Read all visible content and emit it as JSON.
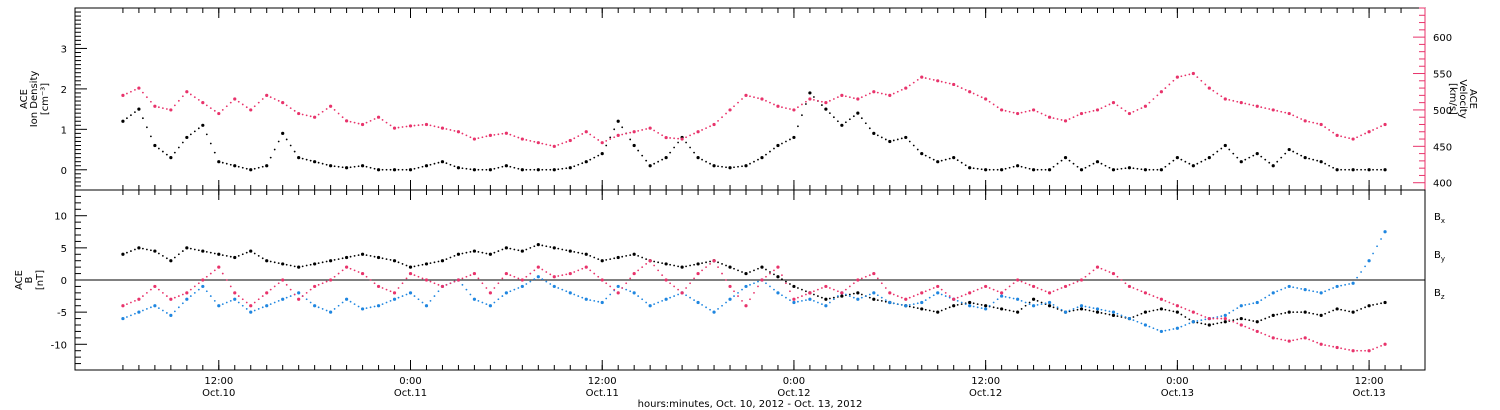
{
  "chart_data": [
    {
      "type": "scatter",
      "panel": "top",
      "ylabel_left": [
        "ACE",
        "Ion Density",
        "[cm⁻³]"
      ],
      "ylabel_right": [
        "ACE",
        "Velocity",
        "[km/s]"
      ],
      "ylim_left": [
        -0.5,
        4.0
      ],
      "ylim_right": [
        390,
        640
      ],
      "yticks_left": [
        0,
        1,
        2,
        3
      ],
      "yticks_right": [
        400,
        450,
        500,
        550,
        600
      ],
      "series": [
        {
          "key": "density",
          "axis": "left",
          "color": "#000000",
          "x": [
            0,
            2,
            4,
            6,
            8,
            10,
            12,
            14,
            16,
            18,
            20,
            22,
            24,
            26,
            28,
            30,
            32,
            34,
            36,
            38,
            40,
            42,
            44,
            46,
            48,
            50,
            52,
            54,
            56,
            58,
            60,
            62,
            64,
            66,
            68,
            70,
            72,
            74,
            76,
            78,
            80,
            82,
            84,
            86,
            88,
            90,
            92,
            94,
            96,
            98,
            100,
            102,
            104,
            106,
            108,
            110,
            112,
            114,
            116,
            118,
            120,
            122,
            124,
            126,
            128,
            130,
            132,
            134,
            136,
            138,
            140,
            142,
            144,
            146,
            148,
            150,
            152,
            154,
            156,
            158
          ],
          "y": [
            1.2,
            1.5,
            0.6,
            0.3,
            0.8,
            1.1,
            0.2,
            0.1,
            0.0,
            0.1,
            0.9,
            0.3,
            0.2,
            0.1,
            0.05,
            0.1,
            0.0,
            0.0,
            0.0,
            0.1,
            0.2,
            0.05,
            0.0,
            0.0,
            0.1,
            0.0,
            0.0,
            0.0,
            0.05,
            0.2,
            0.4,
            1.2,
            0.6,
            0.1,
            0.3,
            0.8,
            0.3,
            0.1,
            0.05,
            0.1,
            0.3,
            0.6,
            0.8,
            1.9,
            1.5,
            1.1,
            1.4,
            0.9,
            0.7,
            0.8,
            0.4,
            0.2,
            0.3,
            0.05,
            0.0,
            0.0,
            0.1,
            0.0,
            0.0,
            0.3,
            0.0,
            0.2,
            0.0,
            0.05,
            0.0,
            0.0,
            0.3,
            0.1,
            0.3,
            0.6,
            0.2,
            0.4,
            0.1,
            0.5,
            0.3,
            0.2,
            0.0,
            0.0,
            0.0,
            0.0
          ]
        },
        {
          "key": "velocity",
          "axis": "right",
          "color": "#e8336b",
          "x": [
            0,
            2,
            4,
            6,
            8,
            10,
            12,
            14,
            16,
            18,
            20,
            22,
            24,
            26,
            28,
            30,
            32,
            34,
            36,
            38,
            40,
            42,
            44,
            46,
            48,
            50,
            52,
            54,
            56,
            58,
            60,
            62,
            64,
            66,
            68,
            70,
            72,
            74,
            76,
            78,
            80,
            82,
            84,
            86,
            88,
            90,
            92,
            94,
            96,
            98,
            100,
            102,
            104,
            106,
            108,
            110,
            112,
            114,
            116,
            118,
            120,
            122,
            124,
            126,
            128,
            130,
            132,
            134,
            136,
            138,
            140,
            142,
            144,
            146,
            148,
            150,
            152,
            154,
            156,
            158
          ],
          "y": [
            520,
            530,
            505,
            500,
            525,
            510,
            495,
            515,
            500,
            520,
            510,
            495,
            490,
            505,
            485,
            480,
            490,
            475,
            478,
            480,
            475,
            470,
            460,
            465,
            468,
            460,
            455,
            450,
            458,
            470,
            455,
            465,
            470,
            475,
            462,
            460,
            470,
            480,
            500,
            520,
            515,
            505,
            500,
            515,
            510,
            520,
            515,
            525,
            520,
            530,
            545,
            540,
            535,
            525,
            515,
            500,
            495,
            500,
            490,
            485,
            495,
            500,
            510,
            495,
            505,
            525,
            545,
            550,
            530,
            515,
            510,
            505,
            500,
            495,
            485,
            480,
            465,
            460,
            470,
            480
          ]
        }
      ]
    },
    {
      "type": "scatter",
      "panel": "bottom",
      "ylabel_left": [
        "ACE",
        "B",
        "[nT]"
      ],
      "ylim": [
        -14,
        14
      ],
      "yticks": [
        -10,
        -5,
        0,
        5,
        10
      ],
      "series": [
        {
          "key": "bx",
          "name": "Bx",
          "color": "#000000",
          "x": [
            0,
            2,
            4,
            6,
            8,
            10,
            12,
            14,
            16,
            18,
            20,
            22,
            24,
            26,
            28,
            30,
            32,
            34,
            36,
            38,
            40,
            42,
            44,
            46,
            48,
            50,
            52,
            54,
            56,
            58,
            60,
            62,
            64,
            66,
            68,
            70,
            72,
            74,
            76,
            78,
            80,
            82,
            84,
            86,
            88,
            90,
            92,
            94,
            96,
            98,
            100,
            102,
            104,
            106,
            108,
            110,
            112,
            114,
            116,
            118,
            120,
            122,
            124,
            126,
            128,
            130,
            132,
            134,
            136,
            138,
            140,
            142,
            144,
            146,
            148,
            150,
            152,
            154,
            156,
            158
          ],
          "y": [
            4,
            5,
            4.5,
            3,
            5,
            4.5,
            4,
            3.5,
            4.5,
            3,
            2.5,
            2,
            2.5,
            3,
            3.5,
            4,
            3.5,
            3,
            2,
            2.5,
            3,
            4,
            4.5,
            4,
            5,
            4.5,
            5.5,
            5,
            4.5,
            4,
            3,
            3.5,
            4,
            3,
            2.5,
            2,
            2.5,
            3,
            2,
            1,
            2,
            0.5,
            -1,
            -2,
            -3,
            -2.5,
            -2,
            -3,
            -3.5,
            -4,
            -4.5,
            -5,
            -4,
            -3.5,
            -4,
            -4.5,
            -5,
            -3,
            -4,
            -5,
            -4.5,
            -5,
            -5.5,
            -6,
            -5,
            -4.5,
            -5,
            -6.5,
            -7,
            -6.5,
            -6,
            -6.5,
            -5.5,
            -5,
            -5,
            -5.5,
            -4.5,
            -5,
            -4,
            -3.5
          ]
        },
        {
          "key": "by",
          "name": "By",
          "color": "#1f86e0",
          "x": [
            0,
            2,
            4,
            6,
            8,
            10,
            12,
            14,
            16,
            18,
            20,
            22,
            24,
            26,
            28,
            30,
            32,
            34,
            36,
            38,
            40,
            42,
            44,
            46,
            48,
            50,
            52,
            54,
            56,
            58,
            60,
            62,
            64,
            66,
            68,
            70,
            72,
            74,
            76,
            78,
            80,
            82,
            84,
            86,
            88,
            90,
            92,
            94,
            96,
            98,
            100,
            102,
            104,
            106,
            108,
            110,
            112,
            114,
            116,
            118,
            120,
            122,
            124,
            126,
            128,
            130,
            132,
            134,
            136,
            138,
            140,
            142,
            144,
            146,
            148,
            150,
            152,
            154,
            156,
            158
          ],
          "y": [
            -6,
            -5,
            -4,
            -5.5,
            -3,
            -1,
            -4,
            -3,
            -5,
            -4,
            -3,
            -2,
            -4,
            -5,
            -3,
            -4.5,
            -4,
            -3,
            -2,
            -4,
            -1,
            0,
            -3,
            -4,
            -2,
            -1,
            0.5,
            -1,
            -2,
            -3,
            -3.5,
            -1,
            -2,
            -4,
            -3,
            -2,
            -3.5,
            -5,
            -3,
            -1,
            0,
            -2,
            -3.5,
            -3,
            -4,
            -2,
            -3,
            -2,
            -3.5,
            -4,
            -3.5,
            -2,
            -3,
            -4,
            -4.5,
            -2.5,
            -3,
            -4,
            -3.5,
            -5,
            -4,
            -4.5,
            -5,
            -6,
            -7,
            -8,
            -7.5,
            -6.5,
            -6,
            -5.5,
            -4,
            -3.5,
            -2,
            -1,
            -1.5,
            -2,
            -1,
            -0.5,
            3,
            7.5
          ]
        },
        {
          "key": "bz",
          "name": "Bz",
          "color": "#e8336b",
          "x": [
            0,
            2,
            4,
            6,
            8,
            10,
            12,
            14,
            16,
            18,
            20,
            22,
            24,
            26,
            28,
            30,
            32,
            34,
            36,
            38,
            40,
            42,
            44,
            46,
            48,
            50,
            52,
            54,
            56,
            58,
            60,
            62,
            64,
            66,
            68,
            70,
            72,
            74,
            76,
            78,
            80,
            82,
            84,
            86,
            88,
            90,
            92,
            94,
            96,
            98,
            100,
            102,
            104,
            106,
            108,
            110,
            112,
            114,
            116,
            118,
            120,
            122,
            124,
            126,
            128,
            130,
            132,
            134,
            136,
            138,
            140,
            142,
            144,
            146,
            148,
            150,
            152,
            154,
            156,
            158
          ],
          "y": [
            -4,
            -3,
            -1,
            -3,
            -2,
            0,
            2,
            -2,
            -4,
            -2,
            0,
            -3,
            -1,
            0,
            2,
            1,
            -1,
            -2,
            1,
            0,
            -1,
            0,
            1,
            -2,
            1,
            0,
            2,
            0.5,
            1,
            2,
            0,
            -2,
            1,
            3,
            0,
            -2,
            1,
            3,
            -1,
            -4,
            0,
            2,
            -3,
            -2,
            -1,
            -2,
            0,
            1,
            -2,
            -3,
            -2,
            -1,
            -3,
            -2,
            -1,
            -2,
            0,
            -1,
            -2,
            -1,
            0,
            2,
            1,
            -1,
            -2,
            -3,
            -4,
            -5,
            -6,
            -6,
            -7,
            -8,
            -9,
            -9.5,
            -9,
            -10,
            -10.5,
            -11,
            -11,
            -10
          ]
        }
      ]
    }
  ],
  "legend": [
    {
      "key": "bx",
      "label": "B",
      "sub": "x",
      "color": "#000000"
    },
    {
      "key": "by",
      "label": "B",
      "sub": "y",
      "color": "#1f86e0"
    },
    {
      "key": "bz",
      "label": "B",
      "sub": "z",
      "color": "#e8336b"
    }
  ],
  "time_axis": {
    "xlim_hours": [
      -6,
      163
    ],
    "ticks": [
      {
        "hour": 12,
        "time": "12:00",
        "date": "Oct.10"
      },
      {
        "hour": 36,
        "time": "0:00",
        "date": "Oct.11"
      },
      {
        "hour": 60,
        "time": "12:00",
        "date": "Oct.11"
      },
      {
        "hour": 84,
        "time": "0:00",
        "date": "Oct.12"
      },
      {
        "hour": 108,
        "time": "12:00",
        "date": "Oct.12"
      },
      {
        "hour": 132,
        "time": "0:00",
        "date": "Oct.13"
      },
      {
        "hour": 156,
        "time": "12:00",
        "date": "Oct.13"
      }
    ],
    "xlabel": "hours:minutes, Oct. 10, 2012 - Oct. 13, 2012"
  }
}
